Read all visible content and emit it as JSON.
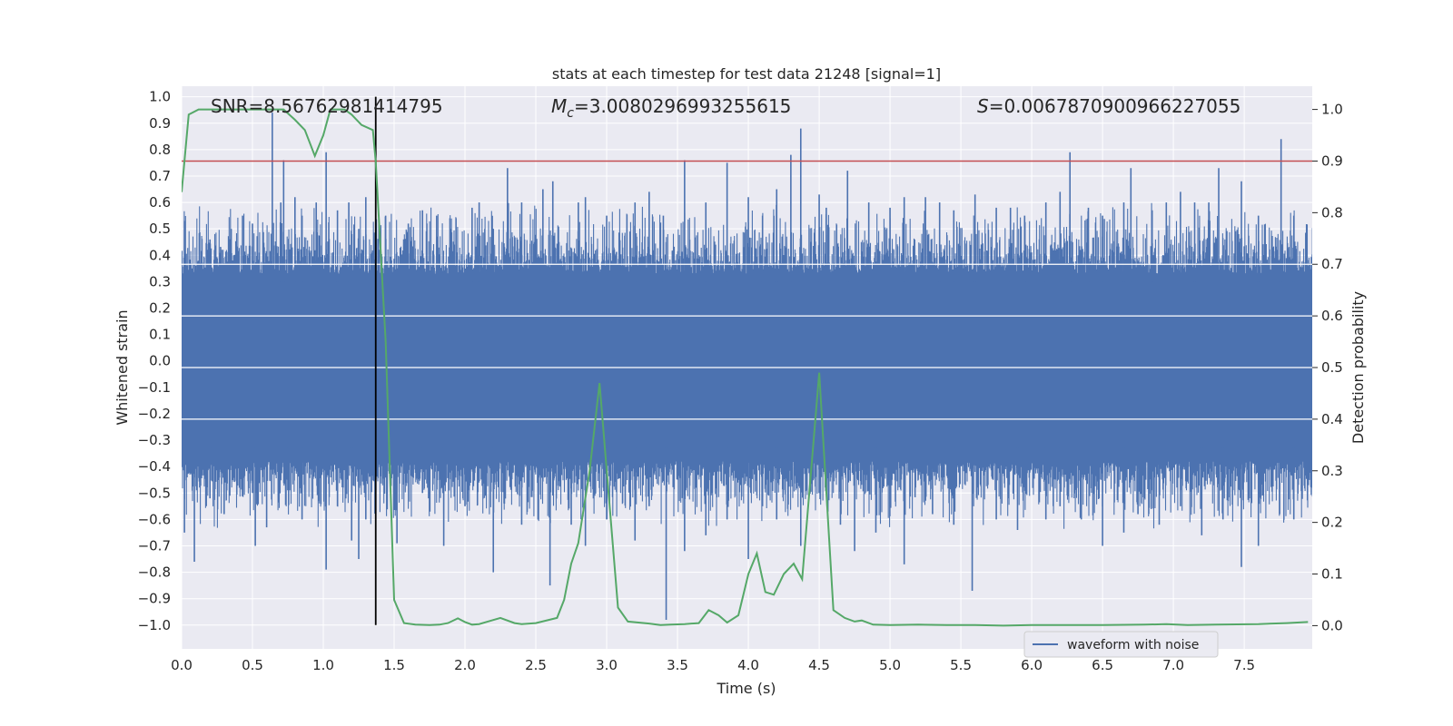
{
  "chart_data": {
    "type": "line",
    "title": "stats at each timestep for test data 21248 [signal=1]",
    "xlabel": "Time (s)",
    "ylabel": "Whitened strain",
    "y2label": "Detection probability",
    "xlim": [
      0.0,
      7.98
    ],
    "ylim": [
      -1.09,
      1.04
    ],
    "y2lim": [
      -0.045,
      1.045
    ],
    "xticks": [
      0.0,
      0.5,
      1.0,
      1.5,
      2.0,
      2.5,
      3.0,
      3.5,
      4.0,
      4.5,
      5.0,
      5.5,
      6.0,
      6.5,
      7.0,
      7.5
    ],
    "xtick_labels": [
      "0.0",
      "0.5",
      "1.0",
      "1.5",
      "2.0",
      "2.5",
      "3.0",
      "3.5",
      "4.0",
      "4.5",
      "5.0",
      "5.5",
      "6.0",
      "6.5",
      "7.0",
      "7.5"
    ],
    "yticks": [
      1.0,
      0.9,
      0.8,
      0.7,
      0.6,
      0.5,
      0.4,
      0.3,
      0.2,
      0.1,
      0.0,
      -0.1,
      -0.2,
      -0.3,
      -0.4,
      -0.5,
      -0.6,
      -0.7,
      -0.8,
      -0.9,
      -1.0
    ],
    "ytick_labels": [
      "1.0",
      "0.9",
      "0.8",
      "0.7",
      "0.6",
      "0.5",
      "0.4",
      "0.3",
      "0.2",
      "0.1",
      "0.0",
      "−0.1",
      "−0.2",
      "−0.3",
      "−0.4",
      "−0.5",
      "−0.6",
      "−0.7",
      "−0.8",
      "−0.9",
      "−1.0"
    ],
    "y2ticks": [
      1.0,
      0.9,
      0.8,
      0.7,
      0.6,
      0.5,
      0.4,
      0.3,
      0.2,
      0.1,
      0.0
    ],
    "y2tick_labels": [
      "1.0",
      "0.9",
      "0.8",
      "0.7",
      "0.6",
      "0.5",
      "0.4",
      "0.3",
      "0.2",
      "0.1",
      "0.0"
    ],
    "grid": true,
    "legend": {
      "location": "lower-right",
      "entries": [
        "waveform with noise"
      ]
    },
    "annotations": {
      "snr": "SNR=8.56762981414795",
      "mc_symbol": "M",
      "mc_subscript": "c",
      "mc_value": "=3.0080296993255615",
      "s_symbol": "S",
      "s_value": "=0.006787090096622705 5"
    },
    "waveform": {
      "name": "waveform with noise",
      "color": "#4c72b0",
      "duration_s": 8.0,
      "band_upper": 0.33,
      "band_lower": -0.38,
      "peaks": [
        {
          "t": 0.02,
          "v": 0.53
        },
        {
          "t": 0.1,
          "v": 0.36
        },
        {
          "t": 0.2,
          "v": 0.46
        },
        {
          "t": 0.35,
          "v": 0.5
        },
        {
          "t": 0.43,
          "v": 0.55
        },
        {
          "t": 0.5,
          "v": 0.52
        },
        {
          "t": 0.64,
          "v": 0.94
        },
        {
          "t": 0.7,
          "v": 0.6
        },
        {
          "t": 0.72,
          "v": 0.76
        },
        {
          "t": 0.8,
          "v": 0.62
        },
        {
          "t": 0.85,
          "v": 0.55
        },
        {
          "t": 0.95,
          "v": 0.6
        },
        {
          "t": 1.02,
          "v": 0.79
        },
        {
          "t": 1.1,
          "v": 0.57
        },
        {
          "t": 1.18,
          "v": 0.6
        },
        {
          "t": 1.25,
          "v": 0.5
        },
        {
          "t": 1.3,
          "v": 0.62
        },
        {
          "t": 1.44,
          "v": 0.55
        },
        {
          "t": 1.6,
          "v": 0.52
        },
        {
          "t": 1.7,
          "v": 0.57
        },
        {
          "t": 1.8,
          "v": 0.55
        },
        {
          "t": 1.9,
          "v": 0.5
        },
        {
          "t": 2.05,
          "v": 0.58
        },
        {
          "t": 2.1,
          "v": 0.6
        },
        {
          "t": 2.2,
          "v": 0.5
        },
        {
          "t": 2.3,
          "v": 0.73
        },
        {
          "t": 2.4,
          "v": 0.6
        },
        {
          "t": 2.55,
          "v": 0.65
        },
        {
          "t": 2.62,
          "v": 0.68
        },
        {
          "t": 2.8,
          "v": 0.6
        },
        {
          "t": 2.85,
          "v": 0.62
        },
        {
          "t": 3.0,
          "v": 0.55
        },
        {
          "t": 3.2,
          "v": 0.6
        },
        {
          "t": 3.3,
          "v": 0.64
        },
        {
          "t": 3.4,
          "v": 0.55
        },
        {
          "t": 3.55,
          "v": 0.76
        },
        {
          "t": 3.7,
          "v": 0.6
        },
        {
          "t": 3.85,
          "v": 0.75
        },
        {
          "t": 4.0,
          "v": 0.62
        },
        {
          "t": 4.1,
          "v": 0.55
        },
        {
          "t": 4.2,
          "v": 0.65
        },
        {
          "t": 4.3,
          "v": 0.78
        },
        {
          "t": 4.37,
          "v": 0.88
        },
        {
          "t": 4.5,
          "v": 0.63
        },
        {
          "t": 4.55,
          "v": 0.58
        },
        {
          "t": 4.7,
          "v": 0.72
        },
        {
          "t": 4.85,
          "v": 0.6
        },
        {
          "t": 5.0,
          "v": 0.58
        },
        {
          "t": 5.1,
          "v": 0.62
        },
        {
          "t": 5.25,
          "v": 0.62
        },
        {
          "t": 5.35,
          "v": 0.6
        },
        {
          "t": 5.45,
          "v": 0.57
        },
        {
          "t": 5.6,
          "v": 0.63
        },
        {
          "t": 5.75,
          "v": 0.58
        },
        {
          "t": 5.85,
          "v": 0.58
        },
        {
          "t": 5.95,
          "v": 0.55
        },
        {
          "t": 6.1,
          "v": 0.6
        },
        {
          "t": 6.2,
          "v": 0.64
        },
        {
          "t": 6.27,
          "v": 0.79
        },
        {
          "t": 6.4,
          "v": 0.58
        },
        {
          "t": 6.5,
          "v": 0.55
        },
        {
          "t": 6.65,
          "v": 0.6
        },
        {
          "t": 6.7,
          "v": 0.73
        },
        {
          "t": 6.85,
          "v": 0.57
        },
        {
          "t": 6.95,
          "v": 0.6
        },
        {
          "t": 7.05,
          "v": 0.64
        },
        {
          "t": 7.15,
          "v": 0.6
        },
        {
          "t": 7.25,
          "v": 0.6
        },
        {
          "t": 7.32,
          "v": 0.73
        },
        {
          "t": 7.48,
          "v": 0.68
        },
        {
          "t": 7.6,
          "v": 0.55
        },
        {
          "t": 7.76,
          "v": 0.84
        },
        {
          "t": 7.85,
          "v": 0.55
        }
      ],
      "troughs": [
        {
          "t": 0.02,
          "v": -0.65
        },
        {
          "t": 0.09,
          "v": -0.76
        },
        {
          "t": 0.2,
          "v": -0.52
        },
        {
          "t": 0.3,
          "v": -0.58
        },
        {
          "t": 0.5,
          "v": -0.5
        },
        {
          "t": 0.52,
          "v": -0.7
        },
        {
          "t": 0.6,
          "v": -0.63
        },
        {
          "t": 0.75,
          "v": -0.45
        },
        {
          "t": 0.85,
          "v": -0.6
        },
        {
          "t": 1.02,
          "v": -0.79
        },
        {
          "t": 1.1,
          "v": -0.55
        },
        {
          "t": 1.2,
          "v": -0.68
        },
        {
          "t": 1.25,
          "v": -0.75
        },
        {
          "t": 1.3,
          "v": -0.6
        },
        {
          "t": 1.52,
          "v": -0.69
        },
        {
          "t": 1.7,
          "v": -0.5
        },
        {
          "t": 1.85,
          "v": -0.7
        },
        {
          "t": 2.0,
          "v": -0.55
        },
        {
          "t": 2.2,
          "v": -0.8
        },
        {
          "t": 2.4,
          "v": -0.62
        },
        {
          "t": 2.6,
          "v": -0.85
        },
        {
          "t": 2.75,
          "v": -0.62
        },
        {
          "t": 2.85,
          "v": -0.7
        },
        {
          "t": 3.0,
          "v": -0.6
        },
        {
          "t": 3.2,
          "v": -0.68
        },
        {
          "t": 3.3,
          "v": -0.55
        },
        {
          "t": 3.42,
          "v": -0.98
        },
        {
          "t": 3.55,
          "v": -0.72
        },
        {
          "t": 3.7,
          "v": -0.66
        },
        {
          "t": 3.85,
          "v": -0.6
        },
        {
          "t": 4.0,
          "v": -0.75
        },
        {
          "t": 4.1,
          "v": -0.55
        },
        {
          "t": 4.2,
          "v": -0.6
        },
        {
          "t": 4.37,
          "v": -0.7
        },
        {
          "t": 4.5,
          "v": -0.5
        },
        {
          "t": 4.65,
          "v": -0.62
        },
        {
          "t": 4.75,
          "v": -0.72
        },
        {
          "t": 4.9,
          "v": -0.65
        },
        {
          "t": 5.1,
          "v": -0.77
        },
        {
          "t": 5.3,
          "v": -0.58
        },
        {
          "t": 5.45,
          "v": -0.62
        },
        {
          "t": 5.58,
          "v": -0.87
        },
        {
          "t": 5.75,
          "v": -0.6
        },
        {
          "t": 5.9,
          "v": -0.64
        },
        {
          "t": 6.1,
          "v": -0.6
        },
        {
          "t": 6.2,
          "v": -0.55
        },
        {
          "t": 6.35,
          "v": -0.6
        },
        {
          "t": 6.5,
          "v": -0.7
        },
        {
          "t": 6.65,
          "v": -0.65
        },
        {
          "t": 6.75,
          "v": -0.58
        },
        {
          "t": 6.9,
          "v": -0.62
        },
        {
          "t": 7.05,
          "v": -0.55
        },
        {
          "t": 7.2,
          "v": -0.66
        },
        {
          "t": 7.35,
          "v": -0.6
        },
        {
          "t": 7.48,
          "v": -0.78
        },
        {
          "t": 7.6,
          "v": -0.7
        },
        {
          "t": 7.75,
          "v": -0.58
        },
        {
          "t": 7.85,
          "v": -0.6
        }
      ]
    },
    "detection_probability": {
      "name": "Detection probability",
      "color": "#55a868",
      "t": [
        0.0,
        0.05,
        0.12,
        0.25,
        0.5,
        0.72,
        0.8,
        0.87,
        0.94,
        1.0,
        1.05,
        1.1,
        1.15,
        1.2,
        1.27,
        1.35,
        1.37,
        1.44,
        1.5,
        1.57,
        1.65,
        1.75,
        1.82,
        1.88,
        1.95,
        2.0,
        2.05,
        2.1,
        2.15,
        2.25,
        2.35,
        2.4,
        2.5,
        2.65,
        2.7,
        2.75,
        2.8,
        2.88,
        2.95,
        3.08,
        3.15,
        3.3,
        3.38,
        3.45,
        3.55,
        3.65,
        3.72,
        3.79,
        3.85,
        3.93,
        4.0,
        4.06,
        4.12,
        4.18,
        4.25,
        4.32,
        4.38,
        4.5,
        4.6,
        4.68,
        4.75,
        4.8,
        4.88,
        5.0,
        5.2,
        5.4,
        5.6,
        5.8,
        6.0,
        6.2,
        6.5,
        6.8,
        6.95,
        7.1,
        7.3,
        7.6,
        7.8,
        7.95
      ],
      "p": [
        0.84,
        0.99,
        1.0,
        1.0,
        1.0,
        1.0,
        0.98,
        0.96,
        0.91,
        0.95,
        1.0,
        1.0,
        1.0,
        0.99,
        0.97,
        0.96,
        0.9,
        0.55,
        0.05,
        0.005,
        0.002,
        0.001,
        0.002,
        0.005,
        0.014,
        0.007,
        0.002,
        0.003,
        0.007,
        0.015,
        0.005,
        0.003,
        0.005,
        0.015,
        0.05,
        0.12,
        0.16,
        0.3,
        0.47,
        0.035,
        0.008,
        0.004,
        0.001,
        0.002,
        0.003,
        0.005,
        0.03,
        0.02,
        0.006,
        0.02,
        0.1,
        0.14,
        0.065,
        0.06,
        0.1,
        0.12,
        0.09,
        0.49,
        0.03,
        0.015,
        0.008,
        0.01,
        0.002,
        0.001,
        0.002,
        0.001,
        0.001,
        0.0,
        0.001,
        0.001,
        0.001,
        0.002,
        0.003,
        0.001,
        0.002,
        0.003,
        0.005,
        0.007
      ]
    },
    "threshold": {
      "value": 0.9,
      "axis": "y2",
      "color": "#c44e52"
    },
    "marker_line": {
      "t": 1.37,
      "color": "#000000"
    }
  }
}
